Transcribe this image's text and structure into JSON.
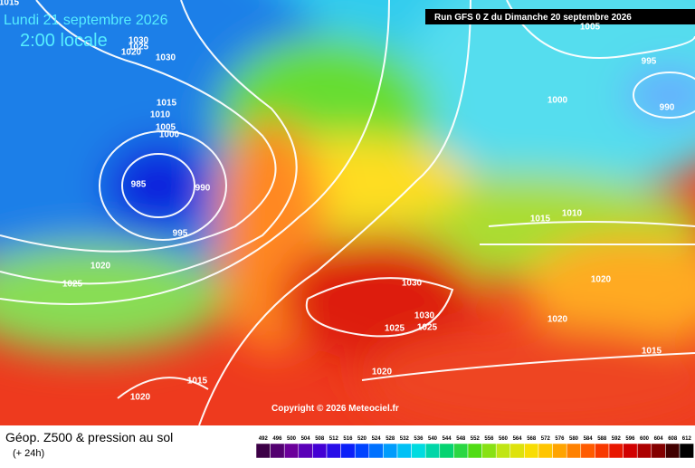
{
  "header": {
    "date": "Lundi 21 septembre 2026",
    "time": "2:00 locale",
    "run": "Run GFS 0 Z du Dimanche 20 septembre 2026"
  },
  "copyright": "Copyright © 2026 Meteociel.fr",
  "footer": {
    "title": "Géop. Z500 & pression au sol",
    "lead": "(+ 24h)"
  },
  "isobar_labels": [
    1015,
    1005,
    995,
    990,
    1000,
    1030,
    1025,
    1020,
    1030,
    1015,
    1010,
    1005,
    1000,
    985,
    990,
    995,
    1020,
    1025,
    1015,
    1010,
    1020,
    1030,
    1030,
    1025,
    1025,
    1020,
    1015,
    1020,
    1015,
    1020
  ],
  "scale_labels": [
    492,
    496,
    500,
    504,
    508,
    512,
    516,
    520,
    524,
    528,
    532,
    536,
    540,
    544,
    548,
    552,
    556,
    560,
    564,
    568,
    572,
    576,
    580,
    584,
    588,
    592,
    596,
    600,
    604,
    608,
    612
  ]
}
